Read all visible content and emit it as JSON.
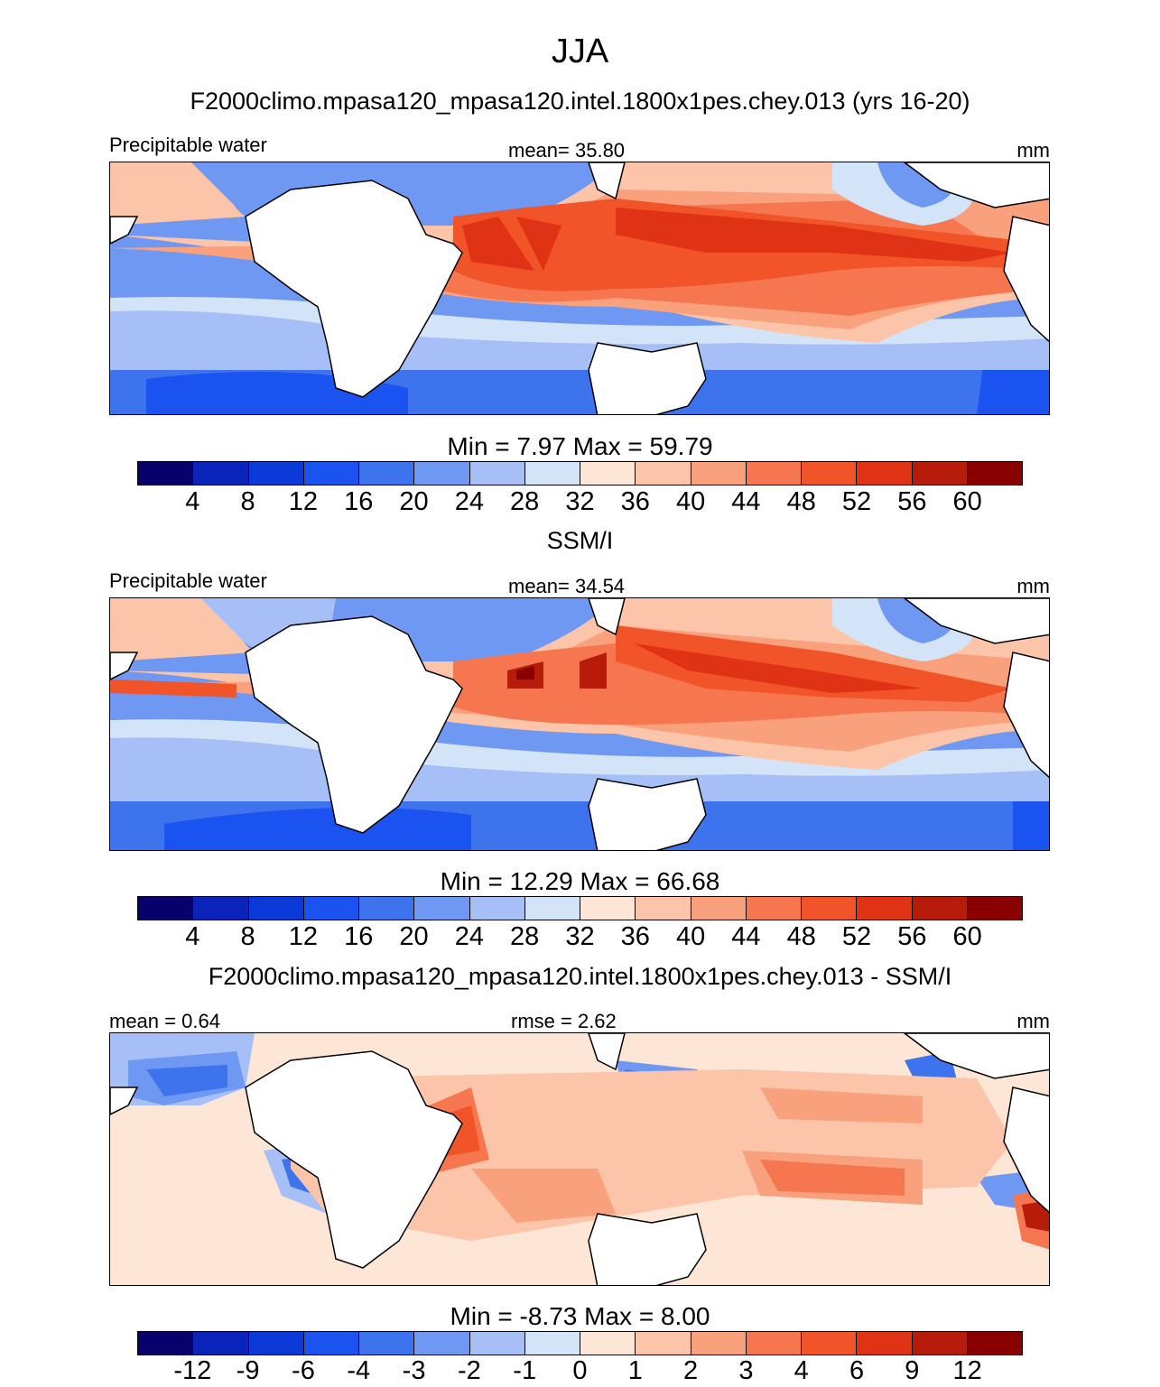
{
  "title": "JJA",
  "panels": [
    {
      "subtitle": "F2000climo.mpasa120_mpasa120.intel.1800x1pes.chey.013 (yrs 16-20)",
      "left_label": "Precipitable water",
      "center_label": "mean=  35.80",
      "right_label": "mm",
      "minmax": "Min =   7.97 Max =  59.79",
      "ticks": [
        "4",
        "8",
        "12",
        "16",
        "20",
        "24",
        "28",
        "32",
        "36",
        "40",
        "44",
        "48",
        "52",
        "56",
        "60"
      ]
    },
    {
      "subtitle": "SSM/I",
      "left_label": "Precipitable water",
      "center_label": "mean=  34.54",
      "right_label": "mm",
      "minmax": "Min =  12.29 Max =  66.68",
      "ticks": [
        "4",
        "8",
        "12",
        "16",
        "20",
        "24",
        "28",
        "32",
        "36",
        "40",
        "44",
        "48",
        "52",
        "56",
        "60"
      ]
    },
    {
      "subtitle": "F2000climo.mpasa120_mpasa120.intel.1800x1pes.chey.013 - SSM/I",
      "left_label": "mean =   0.64",
      "center_label": "rmse =   2.62",
      "right_label": "mm",
      "minmax": "Min =  -8.73 Max =   8.00",
      "ticks": [
        "-12",
        "-9",
        "-6",
        "-4",
        "-3",
        "-2",
        "-1",
        "0",
        "1",
        "2",
        "3",
        "4",
        "6",
        "9",
        "12"
      ]
    }
  ],
  "colorbar_colors": [
    "#07006b",
    "#0a23b8",
    "#0c3ad8",
    "#1b53f0",
    "#3e73ee",
    "#6f98f2",
    "#a6c0f7",
    "#d4e4f8",
    "#fde6d6",
    "#fcc4a8",
    "#f9a07d",
    "#f67650",
    "#f2542a",
    "#e03215",
    "#b71c0b",
    "#8a0000"
  ],
  "chart_data": {
    "type": "heatmap",
    "season": "JJA",
    "variable": "Precipitable water",
    "units": "mm",
    "domain": "tropical band, Atlantic-Indian-Pacific",
    "panels": [
      {
        "name": "F2000climo.mpasa120_mpasa120.intel.1800x1pes.chey.013 (yrs 16-20)",
        "mean": 35.8,
        "min": 7.97,
        "max": 59.79,
        "contour_levels": [
          4,
          8,
          12,
          16,
          20,
          24,
          28,
          32,
          36,
          40,
          44,
          48,
          52,
          56,
          60
        ]
      },
      {
        "name": "SSM/I",
        "mean": 34.54,
        "min": 12.29,
        "max": 66.68,
        "contour_levels": [
          4,
          8,
          12,
          16,
          20,
          24,
          28,
          32,
          36,
          40,
          44,
          48,
          52,
          56,
          60
        ]
      },
      {
        "name": "F2000climo.mpasa120_mpasa120.intel.1800x1pes.chey.013 - SSM/I",
        "mean": 0.64,
        "rmse": 2.62,
        "min": -8.73,
        "max": 8.0,
        "contour_levels": [
          -12,
          -9,
          -6,
          -4,
          -3,
          -2,
          -1,
          0,
          1,
          2,
          3,
          4,
          6,
          9,
          12
        ]
      }
    ]
  }
}
